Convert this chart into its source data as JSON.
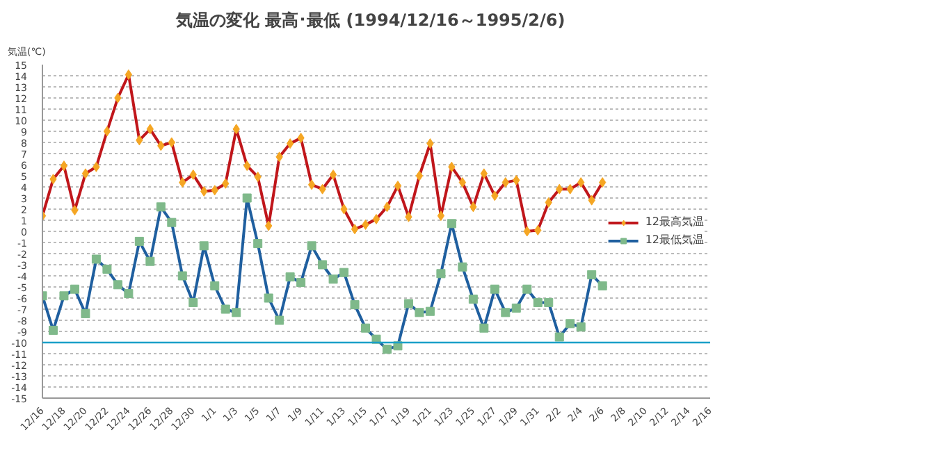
{
  "chart_data": {
    "type": "line",
    "title": "気温の変化  最高･最低  (1994/12/16～1995/2/6)",
    "ylabel": "気温(℃)",
    "x": [
      "1994-12-16",
      "1994-12-17",
      "1994-12-18",
      "1994-12-19",
      "1994-12-20",
      "1994-12-21",
      "1994-12-22",
      "1994-12-23",
      "1994-12-24",
      "1994-12-25",
      "1994-12-26",
      "1994-12-27",
      "1994-12-28",
      "1994-12-29",
      "1994-12-30",
      "1994-12-31",
      "1995-01-01",
      "1995-01-02",
      "1995-01-03",
      "1995-01-04",
      "1995-01-05",
      "1995-01-06",
      "1995-01-07",
      "1995-01-08",
      "1995-01-09",
      "1995-01-10",
      "1995-01-11",
      "1995-01-12",
      "1995-01-13",
      "1995-01-14",
      "1995-01-15",
      "1995-01-16",
      "1995-01-17",
      "1995-01-18",
      "1995-01-19",
      "1995-01-20",
      "1995-01-21",
      "1995-01-22",
      "1995-01-23",
      "1995-01-24",
      "1995-01-25",
      "1995-01-26",
      "1995-01-27",
      "1995-01-28",
      "1995-01-29",
      "1995-01-30",
      "1995-01-31",
      "1995-02-01",
      "1995-02-02",
      "1995-02-03",
      "1995-02-04",
      "1995-02-05",
      "1995-02-06"
    ],
    "series": [
      {
        "name": "12最高気温",
        "color": "#c0161b",
        "marker": "diamond",
        "values": [
          1.4,
          4.7,
          5.9,
          1.9,
          5.2,
          5.8,
          9.0,
          12.0,
          14.1,
          8.2,
          9.2,
          7.7,
          8.0,
          4.4,
          5.1,
          3.6,
          3.7,
          4.3,
          9.2,
          5.9,
          4.9,
          0.5,
          6.7,
          7.9,
          8.4,
          4.2,
          3.8,
          5.1,
          2.0,
          0.2,
          0.6,
          1.1,
          2.2,
          4.1,
          1.3,
          5.0,
          7.9,
          1.4,
          5.8,
          4.4,
          2.2,
          5.2,
          3.2,
          4.4,
          4.6,
          0.0,
          0.1,
          2.6,
          3.8,
          3.8,
          4.4,
          2.8,
          4.4
        ]
      },
      {
        "name": "12最低気温",
        "color": "#1f5f9f",
        "marker": "square",
        "values": [
          -5.8,
          -8.9,
          -5.8,
          -5.2,
          -7.4,
          -2.5,
          -3.4,
          -4.8,
          -5.6,
          -0.9,
          -2.7,
          2.2,
          0.8,
          -4.0,
          -6.4,
          -1.3,
          -4.9,
          -7.0,
          -7.3,
          3.0,
          -1.1,
          -6.0,
          -8.0,
          -4.1,
          -4.6,
          -1.3,
          -3.0,
          -4.3,
          -3.7,
          -6.6,
          -8.7,
          -9.7,
          -10.6,
          -10.3,
          -6.5,
          -7.3,
          -7.2,
          -3.8,
          0.7,
          -3.2,
          -6.1,
          -8.7,
          -5.2,
          -7.3,
          -6.9,
          -5.2,
          -6.4,
          -6.4,
          -9.5,
          -8.3,
          -8.6,
          -3.9,
          -4.9
        ]
      }
    ],
    "xlim": [
      "1994-12-16",
      "1995-02-16"
    ],
    "xticks": [
      {
        "value": "1994-12-16",
        "label": "12/16"
      },
      {
        "value": "1994-12-18",
        "label": "12/18"
      },
      {
        "value": "1994-12-20",
        "label": "12/20"
      },
      {
        "value": "1994-12-22",
        "label": "12/22"
      },
      {
        "value": "1994-12-24",
        "label": "12/24"
      },
      {
        "value": "1994-12-26",
        "label": "12/26"
      },
      {
        "value": "1994-12-28",
        "label": "12/28"
      },
      {
        "value": "1994-12-30",
        "label": "12/30"
      },
      {
        "value": "1995-01-01",
        "label": "1/1"
      },
      {
        "value": "1995-01-03",
        "label": "1/3"
      },
      {
        "value": "1995-01-05",
        "label": "1/5"
      },
      {
        "value": "1995-01-07",
        "label": "1/7"
      },
      {
        "value": "1995-01-09",
        "label": "1/9"
      },
      {
        "value": "1995-01-11",
        "label": "1/11"
      },
      {
        "value": "1995-01-13",
        "label": "1/13"
      },
      {
        "value": "1995-01-15",
        "label": "1/15"
      },
      {
        "value": "1995-01-17",
        "label": "1/17"
      },
      {
        "value": "1995-01-19",
        "label": "1/19"
      },
      {
        "value": "1995-01-21",
        "label": "1/21"
      },
      {
        "value": "1995-01-23",
        "label": "1/23"
      },
      {
        "value": "1995-01-25",
        "label": "1/25"
      },
      {
        "value": "1995-01-27",
        "label": "1/27"
      },
      {
        "value": "1995-01-29",
        "label": "1/29"
      },
      {
        "value": "1995-01-31",
        "label": "1/31"
      },
      {
        "value": "1995-02-02",
        "label": "2/2"
      },
      {
        "value": "1995-02-04",
        "label": "2/4"
      },
      {
        "value": "1995-02-06",
        "label": "2/6"
      },
      {
        "value": "1995-02-08",
        "label": "2/8"
      },
      {
        "value": "1995-02-10",
        "label": "2/10"
      },
      {
        "value": "1995-02-12",
        "label": "2/12"
      },
      {
        "value": "1995-02-14",
        "label": "2/14"
      },
      {
        "value": "1995-02-16",
        "label": "2/16"
      }
    ],
    "ylim": [
      -15,
      15
    ],
    "yticks": [
      -15,
      -14,
      -13,
      -12,
      -11,
      -10,
      -9,
      -8,
      -7,
      -6,
      -5,
      -4,
      -3,
      -2,
      -1,
      0,
      1,
      2,
      3,
      4,
      5,
      6,
      7,
      8,
      9,
      10,
      11,
      12,
      13,
      14,
      15
    ],
    "ref_lines": [
      {
        "axis": "y",
        "value": -10,
        "color": "#1aa0c8",
        "line_style": "solid"
      }
    ],
    "grid": "y",
    "legend": "right",
    "line_style": "solid"
  }
}
